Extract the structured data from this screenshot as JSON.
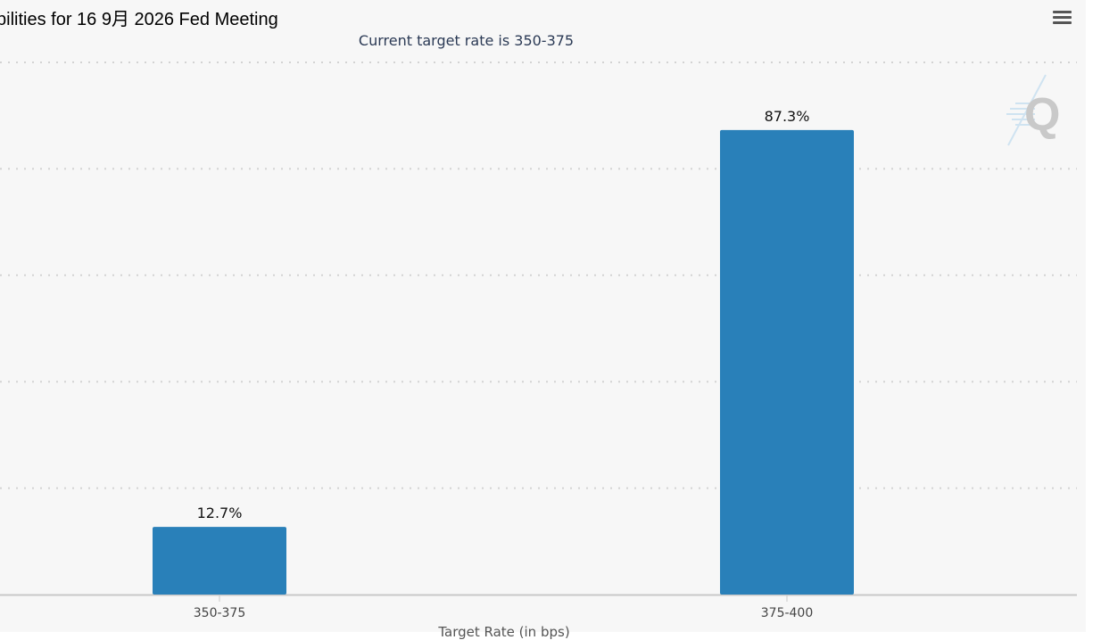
{
  "header": {
    "title": "bilities for 16 9月 2026 Fed Meeting",
    "subtitle": "Current target rate is 350-375"
  },
  "toolbar": {
    "menu_icon": "hamburger-menu-icon"
  },
  "watermark": {
    "icon": "q-logo-icon",
    "text": "Q"
  },
  "colors": {
    "bar": "#2980b9",
    "background": "#f7f7f7",
    "grid": "#d3d3d3"
  },
  "chart_data": {
    "type": "bar",
    "categories": [
      "350-375",
      "375-400"
    ],
    "values": [
      12.7,
      87.3
    ],
    "data_labels": [
      "12.7%",
      "87.3%"
    ],
    "title": "bilities for 16 9月 2026 Fed Meeting",
    "subtitle": "Current target rate is 350-375",
    "xlabel": "Target Rate (in bps)",
    "ylabel": "",
    "ylim": [
      0,
      100
    ],
    "grid": true,
    "legend": "none"
  }
}
